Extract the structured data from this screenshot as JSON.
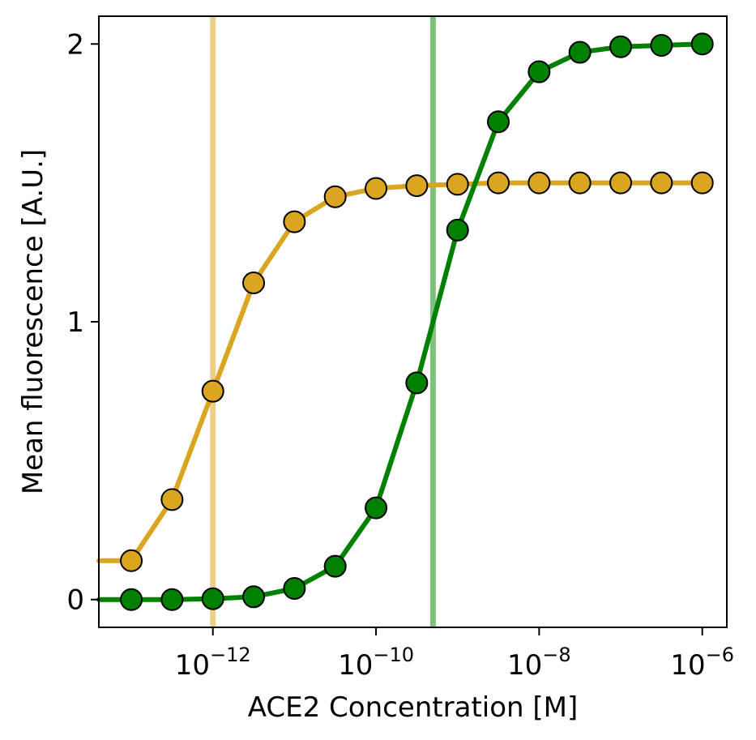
{
  "chart_data": {
    "type": "line",
    "title": "",
    "xlabel": "ACE2 Concentration [M]",
    "ylabel": "Mean fluorescence [A.U.]",
    "xscale": "log",
    "xlim": [
      4e-14,
      2e-06
    ],
    "ylim": [
      -0.1,
      2.1
    ],
    "grid": false,
    "x_ticks": [
      {
        "value": 1e-12,
        "base": "10",
        "exponent": "−12"
      },
      {
        "value": 1e-10,
        "base": "10",
        "exponent": "−10"
      },
      {
        "value": 1e-08,
        "base": "10",
        "exponent": "−8"
      },
      {
        "value": 1e-06,
        "base": "10",
        "exponent": "−6"
      }
    ],
    "y_ticks": [
      {
        "value": 0,
        "label": "0"
      },
      {
        "value": 1,
        "label": "1"
      },
      {
        "value": 2,
        "label": "2"
      }
    ],
    "vlines": [
      {
        "x": 1e-12,
        "color": "#ecd08a"
      },
      {
        "x": 5e-10,
        "color": "#80c080"
      }
    ],
    "series": [
      {
        "color": "#daa520",
        "marker_color": "#daa520",
        "x": [
          4e-14,
          1e-13,
          3.16e-13,
          1e-12,
          3.16e-12,
          1e-11,
          3.16e-11,
          1e-10,
          3.16e-10,
          1e-09,
          3.16e-09,
          1e-08,
          3.16e-08,
          1e-07,
          3.16e-07,
          1e-06
        ],
        "y": [
          0.14,
          0.14,
          0.36,
          0.75,
          1.14,
          1.36,
          1.45,
          1.48,
          1.49,
          1.495,
          1.5,
          1.5,
          1.5,
          1.5,
          1.5,
          1.5
        ],
        "markers": [
          false,
          true,
          true,
          true,
          true,
          true,
          true,
          true,
          true,
          true,
          true,
          true,
          true,
          true,
          true,
          true
        ]
      },
      {
        "color": "#008000",
        "marker_color": "#008000",
        "x": [
          4e-14,
          1e-13,
          3.16e-13,
          1e-12,
          3.16e-12,
          1e-11,
          3.16e-11,
          1e-10,
          3.16e-10,
          1e-09,
          3.16e-09,
          1e-08,
          3.16e-08,
          1e-07,
          3.16e-07,
          1e-06
        ],
        "y": [
          0.0,
          0.0,
          0.0,
          0.003,
          0.01,
          0.04,
          0.12,
          0.33,
          0.78,
          1.33,
          1.72,
          1.9,
          1.97,
          1.99,
          1.995,
          2.0
        ],
        "markers": [
          false,
          true,
          true,
          true,
          true,
          true,
          true,
          true,
          true,
          true,
          true,
          true,
          true,
          true,
          true,
          true
        ]
      }
    ]
  }
}
